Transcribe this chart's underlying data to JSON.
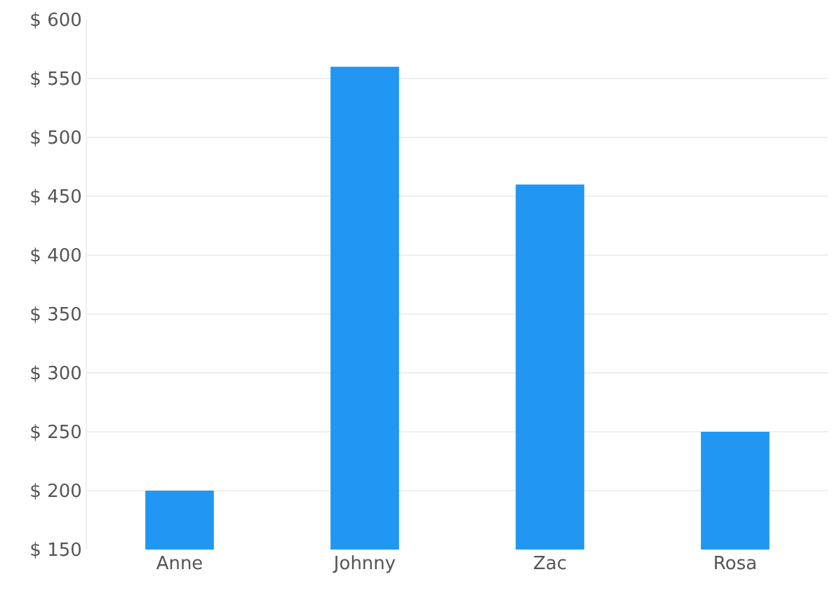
{
  "chart_data": {
    "type": "bar",
    "categories": [
      "Anne",
      "Johnny",
      "Zac",
      "Rosa"
    ],
    "values": [
      200,
      560,
      460,
      250
    ],
    "color": "#2196f3",
    "ylim": [
      150,
      600
    ],
    "yticks": [
      {
        "value": 150,
        "label": "$ 150"
      },
      {
        "value": 200,
        "label": "$ 200"
      },
      {
        "value": 250,
        "label": "$ 250"
      },
      {
        "value": 300,
        "label": "$ 300"
      },
      {
        "value": 350,
        "label": "$ 350"
      },
      {
        "value": 400,
        "label": "$ 400"
      },
      {
        "value": 450,
        "label": "$ 450"
      },
      {
        "value": 500,
        "label": "$ 500"
      },
      {
        "value": 550,
        "label": "$ 550"
      },
      {
        "value": 600,
        "label": "$ 600"
      }
    ],
    "grid": "y"
  }
}
